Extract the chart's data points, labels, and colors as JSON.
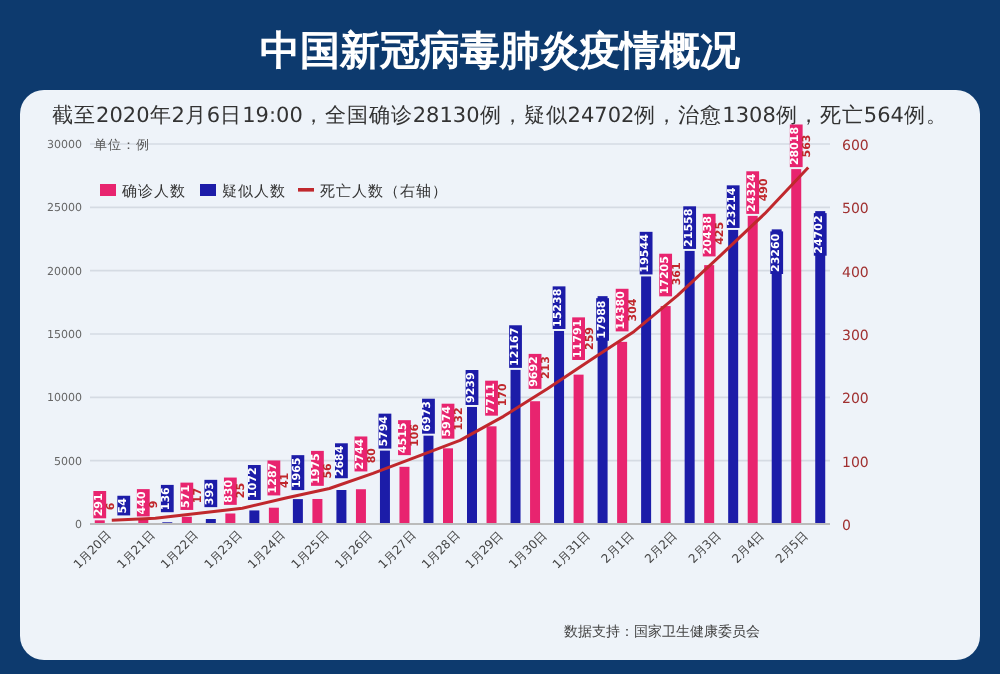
{
  "chart_data": {
    "type": "bar",
    "title": "中国新冠病毒肺炎疫情概况",
    "subtitle": "截至2020年2月6日19:00，全国确诊28130例，疑似24702例，治愈1308例，死亡564例。",
    "ylabel": "单位：例",
    "categories": [
      "1月20日",
      "1月21日",
      "1月22日",
      "1月23日",
      "1月24日",
      "1月25日",
      "1月26日",
      "1月27日",
      "1月28日",
      "1月29日",
      "1月30日",
      "1月31日",
      "2月1日",
      "2月2日",
      "2月3日",
      "2月4日",
      "2月5日"
    ],
    "series": [
      {
        "name": "确诊人数",
        "color": "#e8246f",
        "values": [
          291,
          440,
          571,
          830,
          1287,
          1975,
          2744,
          4515,
          5974,
          7711,
          9692,
          11791,
          14380,
          17205,
          20438,
          24324,
          28018
        ]
      },
      {
        "name": "疑似人数",
        "color": "#1c1ca8",
        "values": [
          54,
          136,
          393,
          1072,
          1965,
          2684,
          5794,
          6973,
          9239,
          12167,
          15238,
          17988,
          19544,
          21558,
          23214,
          23260,
          24702
        ]
      },
      {
        "name": "死亡人数（右轴）",
        "type": "line",
        "axis": "y2",
        "color": "#c0282d",
        "values": [
          6,
          9,
          17,
          25,
          41,
          56,
          80,
          106,
          132,
          170,
          213,
          259,
          304,
          361,
          425,
          490,
          563
        ]
      }
    ],
    "ylim": [
      0,
      30000
    ],
    "yticks": [
      0,
      5000,
      10000,
      15000,
      20000,
      25000,
      30000
    ],
    "y2lim": [
      0,
      600
    ],
    "y2ticks": [
      0,
      100,
      200,
      300,
      400,
      500,
      600
    ],
    "grid": "y",
    "legend": "top left",
    "data_labels": true,
    "annotations": [
      "数据支持：国家卫生健康委员会"
    ]
  }
}
